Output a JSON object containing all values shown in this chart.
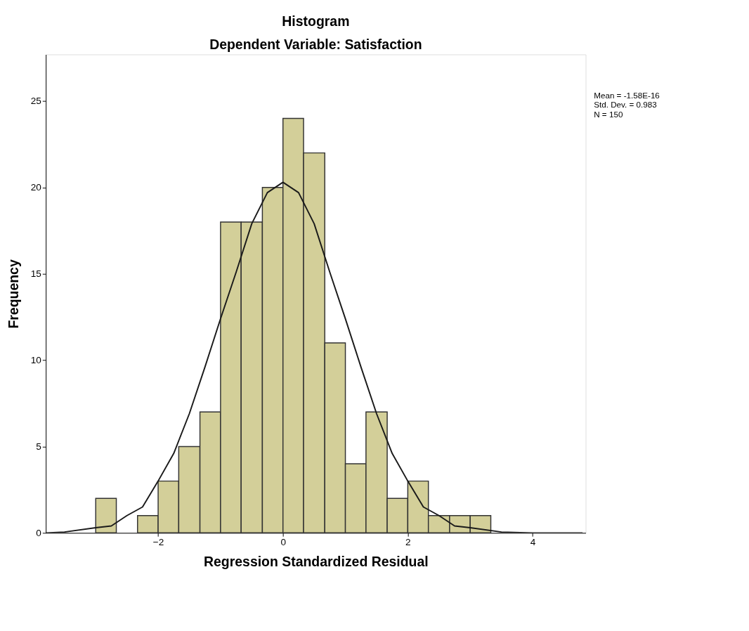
{
  "chart_data": {
    "type": "histogram",
    "title": "Histogram",
    "subtitle": "Dependent Variable: Satisfaction",
    "xlabel": "Regression Standardized Residual",
    "ylabel": "Frequency",
    "bins": [
      -3.0,
      -2.67,
      -2.33,
      -2.0,
      -1.67,
      -1.33,
      -1.0,
      -0.67,
      -0.33,
      0.0,
      0.33,
      0.67,
      1.0,
      1.33,
      1.67,
      2.0,
      2.33,
      2.67,
      3.0,
      3.33
    ],
    "values": [
      2,
      0,
      1,
      3,
      5,
      7,
      18,
      18,
      20,
      24,
      22,
      11,
      4,
      7,
      2,
      3,
      1,
      1,
      1
    ],
    "color": "#d3cf99",
    "series": [
      {
        "type": "line",
        "color": "#1a1a1a",
        "x": [
          -3.8,
          -3.5,
          -3.0,
          -2.75,
          -2.5,
          -2.25,
          -2.0,
          -1.75,
          -1.5,
          -1.25,
          -1.0,
          -0.75,
          -0.5,
          -0.25,
          0.0,
          0.25,
          0.5,
          0.75,
          1.0,
          1.25,
          1.5,
          1.75,
          2.0,
          2.25,
          2.5,
          2.75,
          3.0,
          3.5,
          4.0,
          4.5,
          4.8
        ],
        "values": [
          0.0,
          0.05,
          0.3,
          0.4,
          1.0,
          1.5,
          3.0,
          4.6,
          6.9,
          9.6,
          12.4,
          15.1,
          17.9,
          19.7,
          20.3,
          19.7,
          17.9,
          15.1,
          12.4,
          9.6,
          6.9,
          4.6,
          3.0,
          1.5,
          1.0,
          0.4,
          0.3,
          0.05,
          0.0,
          0.0,
          0.0
        ]
      }
    ],
    "xlim": [
      -3.8,
      4.85
    ],
    "ylim": [
      0,
      27.7
    ],
    "xticks": [
      -2,
      0,
      2,
      4
    ],
    "yticks": [
      0,
      5,
      10,
      15,
      20,
      25
    ],
    "grid": false,
    "annotations": [
      "Mean = -1.58E-16",
      "Std. Dev. = 0.983",
      "N = 150"
    ]
  }
}
